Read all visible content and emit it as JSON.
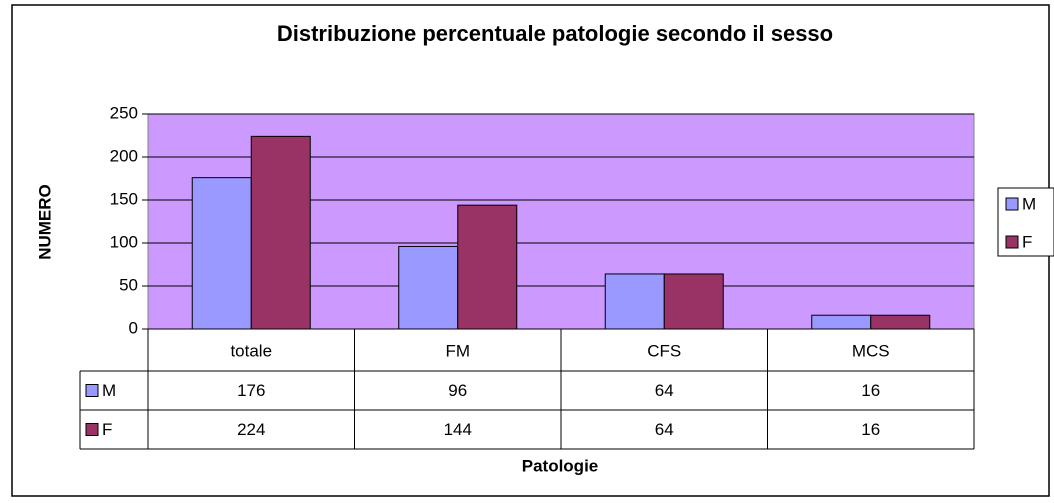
{
  "chart_data": {
    "type": "bar",
    "title": "Distribuzione percentuale patologie secondo il sesso",
    "x_label": "Patologie",
    "y_label": "NUMERO",
    "categories": [
      "totale",
      "FM",
      "CFS",
      "MCS"
    ],
    "series": [
      {
        "name": "M",
        "color": "#9999ff",
        "values": [
          176,
          96,
          64,
          16
        ]
      },
      {
        "name": "F",
        "color": "#993366",
        "values": [
          224,
          144,
          64,
          16
        ]
      }
    ],
    "ylim": [
      0,
      250
    ],
    "yticks": [
      0,
      50,
      100,
      150,
      200,
      250
    ],
    "grid": true,
    "plot_background": "#cc99ff",
    "legend": "right",
    "data_table": true
  }
}
